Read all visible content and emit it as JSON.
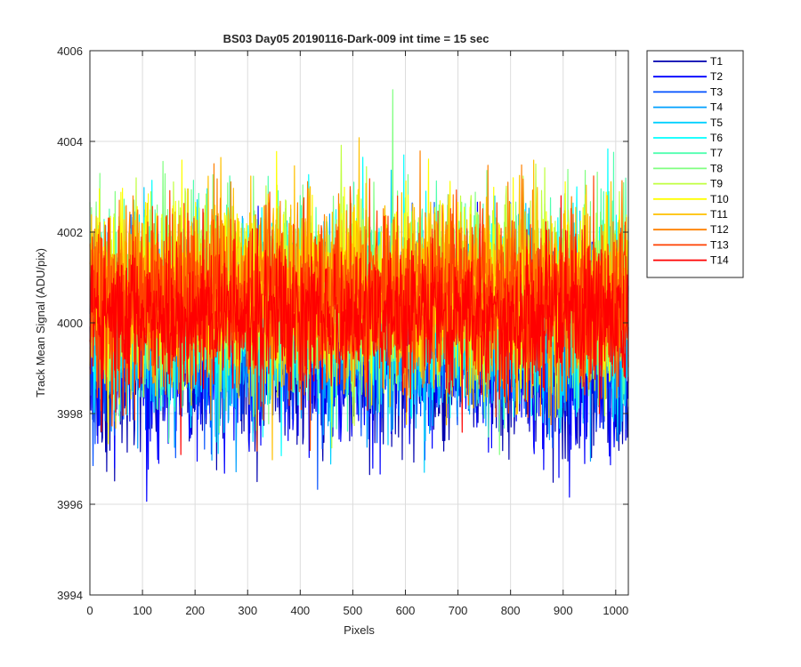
{
  "chart_data": {
    "type": "line",
    "title": "BS03 Day05 20190116-Dark-009 int time = 15 sec",
    "xlabel": "Pixels",
    "ylabel": "Track Mean Signal (ADU/pix)",
    "xlim": [
      0,
      1024
    ],
    "ylim": [
      3994,
      4006
    ],
    "xticks": [
      0,
      100,
      200,
      300,
      400,
      500,
      600,
      700,
      800,
      900,
      1000
    ],
    "yticks": [
      3994,
      3996,
      3998,
      4000,
      4002,
      4004,
      4006
    ],
    "grid": true,
    "legend_position": "outside-right",
    "series": [
      {
        "name": "T1",
        "color": "#0000af",
        "center": 3999.3,
        "spread": 1.0,
        "sample_x": [
          0,
          85,
          325,
          900,
          1020
        ],
        "sample_y": [
          3997.8,
          3995.6,
          3995.9,
          3995.5,
          3996.6
        ]
      },
      {
        "name": "T2",
        "color": "#0000ff",
        "center": 3999.4,
        "spread": 1.0,
        "sample_x": [
          0,
          200,
          500,
          800,
          1020
        ],
        "sample_y": [
          3999.0,
          3997.5,
          3998.0,
          3997.8,
          3998.2
        ]
      },
      {
        "name": "T3",
        "color": "#0050ff",
        "center": 3999.7,
        "spread": 1.0,
        "sample_x": [
          0,
          300,
          600,
          1020
        ],
        "sample_y": [
          3999.5,
          3998.8,
          3999.0,
          3999.2
        ]
      },
      {
        "name": "T4",
        "color": "#00a0ff",
        "center": 3999.9,
        "spread": 1.0,
        "sample_x": [
          0,
          300,
          600,
          1020
        ],
        "sample_y": [
          4000.5,
          3999.5,
          3999.8,
          3999.6
        ]
      },
      {
        "name": "T5",
        "color": "#00d0ff",
        "center": 4000.1,
        "spread": 1.0,
        "sample_x": [
          0,
          300,
          600,
          1020
        ],
        "sample_y": [
          4001.0,
          4000.0,
          4000.2,
          4000.0
        ]
      },
      {
        "name": "T6",
        "color": "#00ffff",
        "center": 4000.3,
        "spread": 1.0,
        "sample_x": [
          0,
          300,
          600,
          1020
        ],
        "sample_y": [
          4003.5,
          4001.0,
          4001.0,
          4000.5
        ]
      },
      {
        "name": "T7",
        "color": "#50ffaf",
        "center": 4000.5,
        "spread": 1.0,
        "sample_x": [
          0,
          300,
          600,
          1020
        ],
        "sample_y": [
          4003.0,
          4001.5,
          4001.0,
          4000.8
        ]
      },
      {
        "name": "T8",
        "color": "#80ff80",
        "center": 4000.6,
        "spread": 1.0,
        "sample_x": [
          0,
          455,
          800,
          1020
        ],
        "sample_y": [
          4002.8,
          4005.5,
          4001.0,
          4001.0
        ]
      },
      {
        "name": "T9",
        "color": "#c0ff40",
        "center": 4000.7,
        "spread": 1.0,
        "sample_x": [
          0,
          300,
          600,
          1020
        ],
        "sample_y": [
          4002.5,
          4001.5,
          4001.5,
          4001.0
        ]
      },
      {
        "name": "T10",
        "color": "#ffff00",
        "center": 4000.7,
        "spread": 1.0,
        "sample_x": [
          0,
          300,
          600,
          1020
        ],
        "sample_y": [
          4002.0,
          4001.5,
          4001.5,
          4001.0
        ]
      },
      {
        "name": "T11",
        "color": "#ffc000",
        "center": 4000.7,
        "spread": 1.0,
        "sample_x": [
          0,
          300,
          600,
          1020
        ],
        "sample_y": [
          4001.8,
          4001.5,
          4001.5,
          4001.0
        ]
      },
      {
        "name": "T12",
        "color": "#ff8000",
        "center": 4000.6,
        "spread": 1.0,
        "sample_x": [
          0,
          300,
          600,
          1020
        ],
        "sample_y": [
          4001.5,
          4001.0,
          4001.0,
          4000.8
        ]
      },
      {
        "name": "T13",
        "color": "#ff4000",
        "center": 4000.5,
        "spread": 1.0,
        "sample_x": [
          0,
          300,
          600,
          1020
        ],
        "sample_y": [
          4001.2,
          4000.8,
          4000.8,
          4000.5
        ]
      },
      {
        "name": "T14",
        "color": "#ff0000",
        "center": 4000.1,
        "spread": 0.8,
        "sample_x": [
          0,
          540,
          1020
        ],
        "sample_y": [
          4000.5,
          3996.6,
          3999.5
        ]
      }
    ]
  }
}
